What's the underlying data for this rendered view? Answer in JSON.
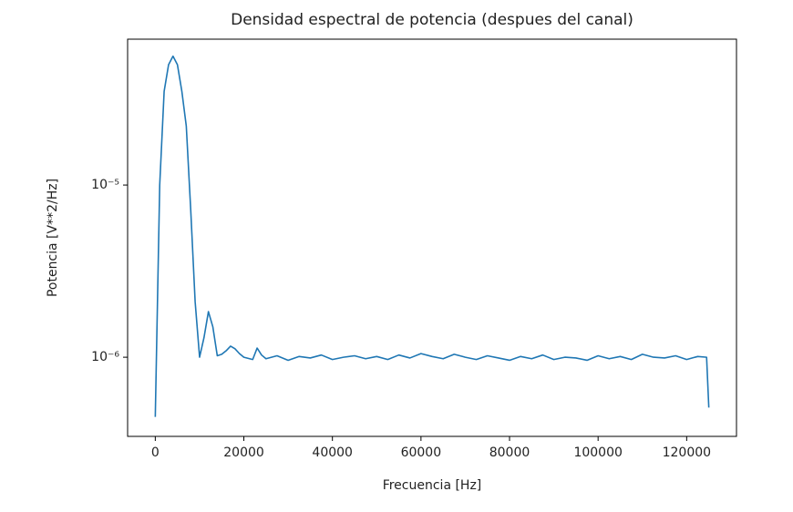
{
  "chart_data": {
    "type": "line",
    "title": "Densidad espectral de potencia (despues del canal)",
    "x_label": "Frecuencia  [Hz]",
    "y_label": "Potencia [V**2/Hz]",
    "y_scale": "log",
    "xlim": [
      -6250,
      131250
    ],
    "ylim": [
      3.47e-07,
      7.03e-05
    ],
    "xticks": [
      0,
      20000,
      40000,
      60000,
      80000,
      100000,
      120000
    ],
    "yticks": [
      {
        "value": 1e-06,
        "label": "10⁻⁶"
      },
      {
        "value": 1e-05,
        "label": "10⁻⁵"
      }
    ],
    "series": [
      {
        "color": "#1f77b4",
        "x": [
          0,
          1000,
          2000,
          3000,
          4000,
          5000,
          6000,
          7000,
          8000,
          9000,
          10000,
          11000,
          12000,
          13000,
          14000,
          15000,
          16000,
          17000,
          18000,
          19000,
          20000,
          22000,
          23000,
          24000,
          25000,
          27500,
          30000,
          32500,
          35000,
          37500,
          40000,
          42500,
          45000,
          47500,
          50000,
          52500,
          55000,
          57500,
          60000,
          62500,
          65000,
          67500,
          70000,
          72500,
          75000,
          77500,
          80000,
          82500,
          85000,
          87500,
          90000,
          92500,
          95000,
          97500,
          100000,
          102500,
          105000,
          107500,
          110000,
          112500,
          115000,
          117500,
          120000,
          122500,
          124500,
          125000
        ],
        "values": [
          4.5e-07,
          1e-05,
          3.5e-05,
          5e-05,
          5.6e-05,
          5e-05,
          3.5e-05,
          2.2e-05,
          7.2e-06,
          2.1e-06,
          1e-06,
          1.3e-06,
          1.84e-06,
          1.5e-06,
          1.02e-06,
          1.04e-06,
          1.09e-06,
          1.16e-06,
          1.12e-06,
          1.05e-06,
          1e-06,
          9.7e-07,
          1.13e-06,
          1.03e-06,
          9.8e-07,
          1.02e-06,
          9.6e-07,
          1.01e-06,
          9.9e-07,
          1.03e-06,
          9.7e-07,
          1e-06,
          1.02e-06,
          9.8e-07,
          1.01e-06,
          9.7e-07,
          1.03e-06,
          9.9e-07,
          1.05e-06,
          1.01e-06,
          9.8e-07,
          1.04e-06,
          1e-06,
          9.7e-07,
          1.02e-06,
          9.9e-07,
          9.6e-07,
          1.01e-06,
          9.8e-07,
          1.03e-06,
          9.7e-07,
          1e-06,
          9.9e-07,
          9.6e-07,
          1.02e-06,
          9.8e-07,
          1.01e-06,
          9.7e-07,
          1.04e-06,
          1e-06,
          9.9e-07,
          1.02e-06,
          9.7e-07,
          1.01e-06,
          1e-06,
          5.1e-07
        ]
      }
    ]
  }
}
